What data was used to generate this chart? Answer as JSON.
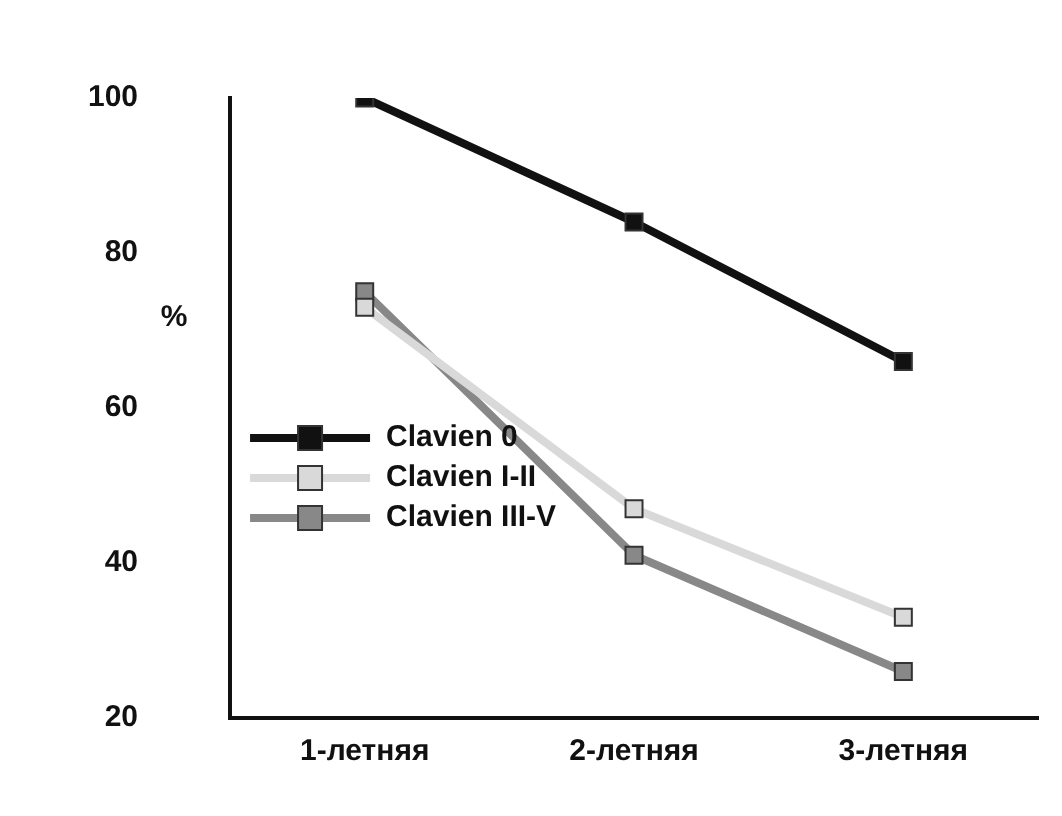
{
  "chart_data": {
    "type": "line",
    "ylabel": "%",
    "categories": [
      "1-летняя",
      "2-летняя",
      "3-летняя"
    ],
    "series": [
      {
        "name": "Clavien 0",
        "color": "#111111",
        "values": [
          100,
          84,
          66
        ]
      },
      {
        "name": "Clavien I-II",
        "color": "#d9d9d9",
        "values": [
          73,
          47,
          33
        ]
      },
      {
        "name": "Clavien III-V",
        "color": "#888888",
        "values": [
          75,
          41,
          26
        ]
      }
    ],
    "ylim": [
      20,
      100
    ],
    "yticks": [
      20,
      40,
      60,
      80,
      100
    ],
    "grid": false,
    "legend": "bottom left",
    "marker": "square",
    "line_style": "solid"
  }
}
